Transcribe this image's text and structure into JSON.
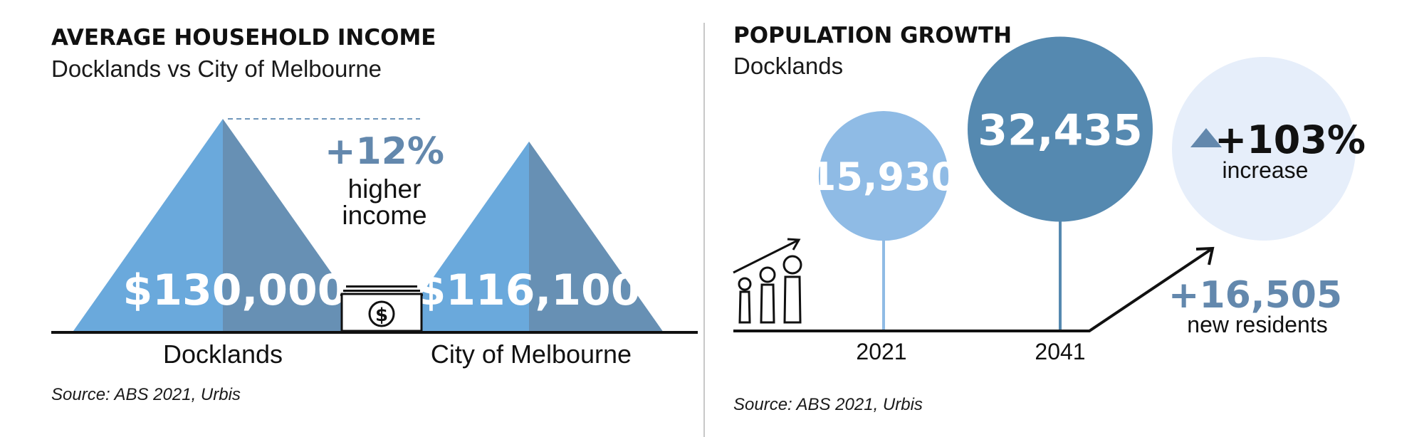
{
  "colors": {
    "light_blue": "#6aa9dc",
    "steel_blue": "#6790b4",
    "pale_blue": "#8fbbe5",
    "dark_blue": "#5589b0",
    "very_pale_blue": "#e6eefa",
    "accent_text": "#6388ad",
    "ink": "#111111"
  },
  "income": {
    "title": "AVERAGE HOUSEHOLD INCOME",
    "subtitle": "Docklands vs City of Melbourne",
    "diff_value": "+12%",
    "diff_line1": "higher",
    "diff_line2": "income",
    "source": "Source: ABS 2021, Urbis"
  },
  "population": {
    "title": "POPULATION GROWTH",
    "subtitle": "Docklands",
    "pct_value": "+103%",
    "pct_label": "increase",
    "delta_value": "+16,505",
    "delta_label": "new residents",
    "source": "Source: ABS 2021, Urbis"
  },
  "chart_data": [
    {
      "type": "bar",
      "title": "AVERAGE HOUSEHOLD INCOME",
      "subtitle": "Docklands vs City of Melbourne",
      "categories": [
        "Docklands",
        "City of Melbourne"
      ],
      "values": [
        130000,
        116100
      ],
      "value_labels": [
        "$130,000",
        "$116,100"
      ],
      "annotation": "+12% higher income",
      "icon": "dollar-money-stack-icon"
    },
    {
      "type": "bar",
      "title": "POPULATION GROWTH",
      "subtitle": "Docklands",
      "categories": [
        "2021",
        "2041"
      ],
      "values": [
        15930,
        32435
      ],
      "value_labels": [
        "15,930",
        "32,435"
      ],
      "annotations": [
        "+103% increase",
        "+16,505 new residents"
      ],
      "icon": "people-growth-icon"
    }
  ]
}
